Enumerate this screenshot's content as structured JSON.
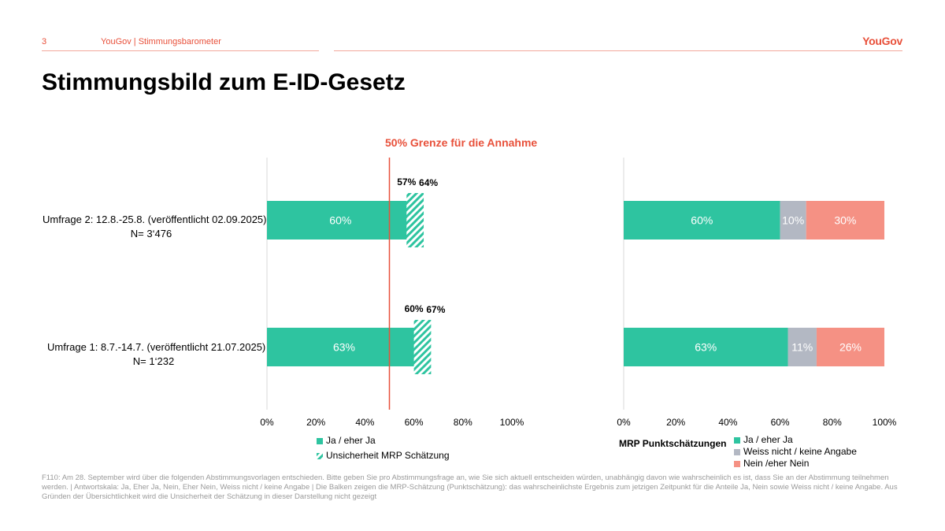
{
  "header": {
    "page_number": "3",
    "breadcrumb": "YouGov | Stimmungsbarometer",
    "logo": "YouGov"
  },
  "title": "Stimmungsbild zum E-ID-Gesetz",
  "threshold_label": "50% Grenze für die Annahme",
  "colors": {
    "ja": "#2ec4a0",
    "weiss_nicht": "#b3b8c3",
    "nein": "#f59184",
    "threshold": "#e8503a"
  },
  "surveys": [
    {
      "line1": "Umfrage 2: 12.8.-25.8. (veröffentlicht 02.09.2025)",
      "line2": "N= 3‘476"
    },
    {
      "line1": "Umfrage 1: 8.7.-14.7. (veröffentlicht 21.07.2025)",
      "line2": "N= 1‘232"
    }
  ],
  "chart_data": [
    {
      "type": "bar",
      "orientation": "horizontal",
      "categories": [
        "Umfrage 2: 12.8.-25.8. (veröffentlicht 02.09.2025) N= 3‘476",
        "Umfrage 1: 8.7.-14.7. (veröffentlicht 21.07.2025) N= 1‘232"
      ],
      "series": [
        {
          "name": "Ja / eher Ja",
          "values": [
            60,
            63
          ],
          "labels": [
            "60%",
            "63%"
          ]
        },
        {
          "name": "Unsicherheit MRP Schätzung",
          "low": [
            57,
            60
          ],
          "high": [
            64,
            67
          ],
          "low_labels": [
            "57%",
            "60%"
          ],
          "high_labels": [
            "64%",
            "67%"
          ]
        }
      ],
      "reference_line": {
        "value": 50
      },
      "xlim": [
        0,
        100
      ],
      "x_ticks": [
        "0%",
        "20%",
        "40%",
        "60%",
        "80%",
        "100%"
      ],
      "legend": [
        "Ja / eher Ja",
        "Unsicherheit MRP Schätzung"
      ],
      "legend_position": "bottom"
    },
    {
      "type": "bar",
      "orientation": "horizontal",
      "stacked": true,
      "categories": [
        "Umfrage 2: 12.8.-25.8. (veröffentlicht 02.09.2025) N= 3‘476",
        "Umfrage 1: 8.7.-14.7. (veröffentlicht 21.07.2025) N= 1‘232"
      ],
      "series": [
        {
          "name": "Ja / eher Ja",
          "values": [
            60,
            63
          ],
          "labels": [
            "60%",
            "63%"
          ]
        },
        {
          "name": "Weiss nicht / keine Angabe",
          "values": [
            10,
            11
          ],
          "labels": [
            "10%",
            "11%"
          ]
        },
        {
          "name": "Nein /eher Nein",
          "values": [
            30,
            26
          ],
          "labels": [
            "30%",
            "26%"
          ]
        }
      ],
      "xlim": [
        0,
        100
      ],
      "x_ticks": [
        "0%",
        "20%",
        "40%",
        "60%",
        "80%",
        "100%"
      ],
      "legend_title": "MRP Punktschätzungen",
      "legend": [
        "Ja / eher Ja",
        "Weiss nicht / keine Angabe",
        "Nein /eher Nein"
      ],
      "legend_position": "bottom"
    }
  ],
  "footnote": "F110: Am 28. September wird über die folgenden Abstimmungsvorlagen entschieden. Bitte geben Sie pro Abstimmungsfrage an, wie Sie sich aktuell entscheiden würden, unabhängig davon wie wahrscheinlich es ist, dass Sie an der Abstimmung teilnehmen werden. | Antwortskala: Ja, Eher Ja, Nein, Eher Nein, Weiss nicht / keine Angabe | Die Balken zeigen die MRP-Schätzung (Punktschätzung): das wahrscheinlichste Ergebnis zum jetzigen Zeitpunkt für die Anteile Ja, Nein sowie Weiss nicht / keine Angabe. Aus Gründen der Übersichtlichkeit wird die Unsicherheit der Schätzung in dieser Darstellung nicht gezeigt"
}
